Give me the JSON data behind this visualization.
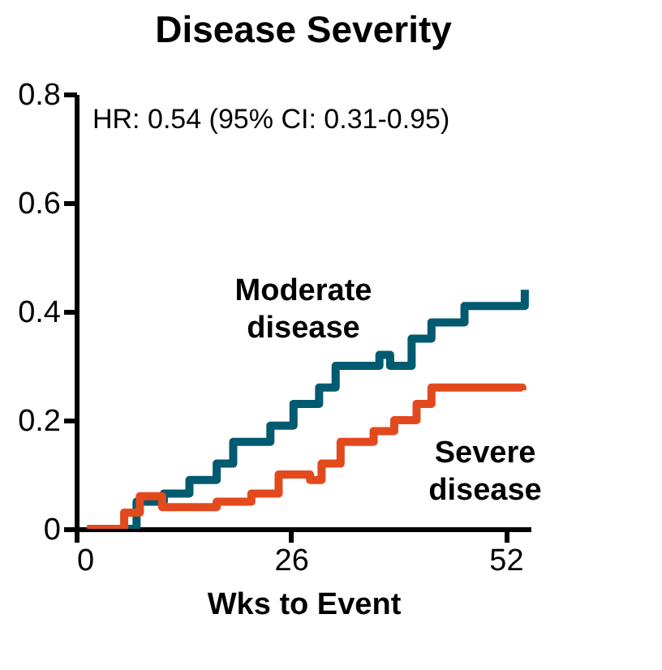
{
  "chart_data": {
    "type": "step",
    "title": "Disease Severity",
    "xlabel": "Wks to Event",
    "annotations": [
      "HR: 0.54 (95% CI: 0.31-0.95)"
    ],
    "xlim": [
      0,
      55
    ],
    "xticks": [
      0,
      26,
      52
    ],
    "ylim": [
      0,
      0.8
    ],
    "yticks": [
      0,
      0.2,
      0.4,
      0.6,
      0.8
    ],
    "grid": false,
    "legend": false,
    "series": [
      {
        "name": "Moderate disease",
        "color": "#005a70",
        "x": [
          2.3,
          7.3,
          10.6,
          13.7,
          17,
          19,
          23.5,
          26.3,
          29.4,
          31.4,
          36.7,
          38,
          40.6,
          43,
          47,
          53.7,
          54.3
        ],
        "values": [
          0,
          0.05,
          0.065,
          0.09,
          0.12,
          0.16,
          0.19,
          0.23,
          0.26,
          0.3,
          0.32,
          0.3,
          0.35,
          0.38,
          0.41,
          0.41,
          0.44
        ]
      },
      {
        "name": "Severe disease",
        "color": "#e24a1e",
        "x": [
          1.3,
          5.8,
          7.7,
          10.4,
          17,
          21.2,
          24.5,
          28.3,
          29.7,
          32,
          36,
          38.5,
          41.2,
          43,
          54
        ],
        "values": [
          0,
          0.03,
          0.06,
          0.04,
          0.05,
          0.065,
          0.1,
          0.09,
          0.12,
          0.16,
          0.18,
          0.2,
          0.23,
          0.26,
          0.255
        ]
      }
    ]
  }
}
